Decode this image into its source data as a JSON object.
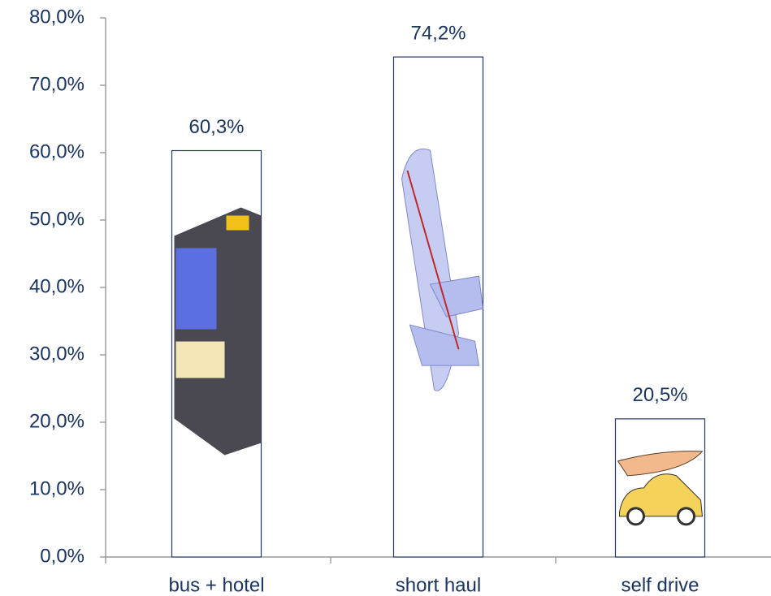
{
  "chart_data": {
    "type": "bar",
    "categories": [
      "bus + hotel",
      "short haul",
      "self drive"
    ],
    "values": [
      60.3,
      74.2,
      20.5
    ],
    "value_labels": [
      "60,3%",
      "74,2%",
      "20,5%"
    ],
    "color": "#ffffff",
    "ylim": [
      0,
      80
    ],
    "yticks": [
      {
        "value": 0,
        "label": "0,0%"
      },
      {
        "value": 10,
        "label": "10,0%"
      },
      {
        "value": 20,
        "label": "20,0%"
      },
      {
        "value": 30,
        "label": "30,0%"
      },
      {
        "value": 40,
        "label": "40,0%"
      },
      {
        "value": 50,
        "label": "50,0%"
      },
      {
        "value": 60,
        "label": "60,0%"
      },
      {
        "value": 70,
        "label": "70,0%"
      },
      {
        "value": 80,
        "label": "80,0%"
      }
    ],
    "grid": false
  }
}
